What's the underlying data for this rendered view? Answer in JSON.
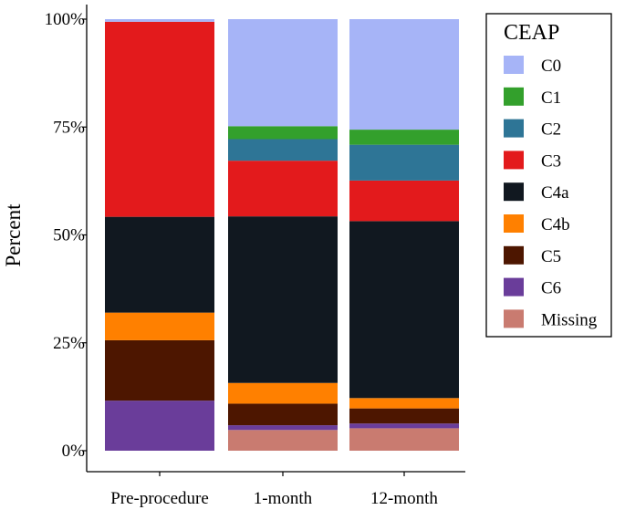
{
  "chart_data": {
    "type": "bar",
    "stacked": true,
    "normalized": true,
    "categories": [
      "Pre-procedure",
      "1-month",
      "12-month"
    ],
    "ylabel": "Percent",
    "xlabel": "",
    "ylim": [
      0,
      100
    ],
    "yticks": [
      0,
      25,
      50,
      75,
      100
    ],
    "ytick_labels": [
      "0%",
      "25%",
      "50%",
      "75%",
      "100%"
    ],
    "legend": {
      "title": "CEAP",
      "position": "right"
    },
    "series": [
      {
        "name": "Missing",
        "color": "#c97b70",
        "values": [
          0,
          4.8,
          5.2
        ]
      },
      {
        "name": "C6",
        "color": "#6a3d9a",
        "values": [
          11.6,
          1.1,
          1.1
        ]
      },
      {
        "name": "C5",
        "color": "#4d1600",
        "values": [
          14.0,
          5.0,
          3.5
        ]
      },
      {
        "name": "C4b",
        "color": "#ff8000",
        "values": [
          6.4,
          4.8,
          2.4
        ]
      },
      {
        "name": "C4a",
        "color": "#111820",
        "values": [
          22.2,
          38.6,
          41.0
        ]
      },
      {
        "name": "C3",
        "color": "#e31a1c",
        "values": [
          45.2,
          12.9,
          9.4
        ]
      },
      {
        "name": "C2",
        "color": "#2e7596",
        "values": [
          0,
          5.0,
          8.3
        ]
      },
      {
        "name": "C1",
        "color": "#33a02c",
        "values": [
          0,
          3.0,
          3.5
        ]
      },
      {
        "name": "C0",
        "color": "#a6b4f7",
        "values": [
          0.6,
          24.8,
          25.6
        ]
      }
    ],
    "legend_order": [
      "C0",
      "C1",
      "C2",
      "C3",
      "C4a",
      "C4b",
      "C5",
      "C6",
      "Missing"
    ]
  }
}
